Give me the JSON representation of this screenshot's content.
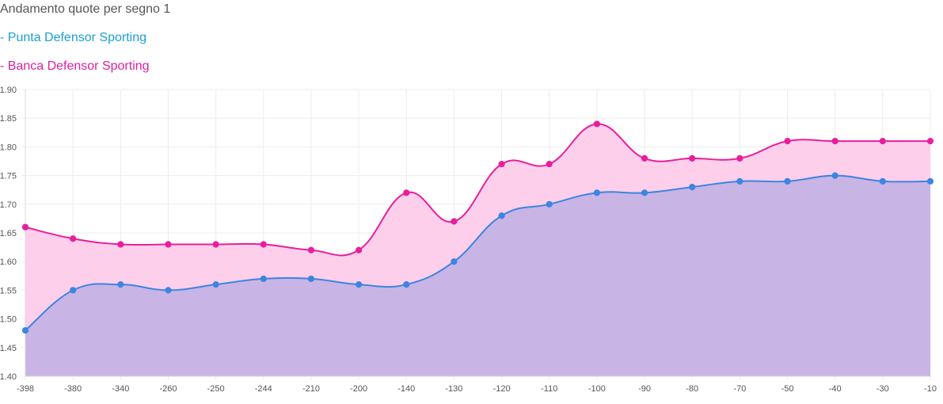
{
  "title": "Andamento quote per segno 1",
  "legend": {
    "punta": "- Punta Defensor Sporting",
    "banca": "- Banca Defensor Sporting"
  },
  "colors": {
    "punta_line": "#3d85e0",
    "punta_fill": "#c9b4e6",
    "banca_line": "#e91e9c",
    "banca_fill": "#fdcfeb",
    "grid": "#ececec",
    "axis_text": "#555555"
  },
  "chart_data": {
    "type": "area",
    "categories": [
      "-398",
      "-380",
      "-340",
      "-260",
      "-250",
      "-244",
      "-210",
      "-200",
      "-140",
      "-130",
      "-120",
      "-110",
      "-100",
      "-90",
      "-80",
      "-70",
      "-50",
      "-40",
      "-30",
      "-10"
    ],
    "series": [
      {
        "name": "- Punta Defensor Sporting",
        "values": [
          1.48,
          1.55,
          1.56,
          1.55,
          1.56,
          1.57,
          1.57,
          1.56,
          1.56,
          1.6,
          1.68,
          1.7,
          1.72,
          1.72,
          1.73,
          1.74,
          1.74,
          1.75,
          1.74,
          1.74
        ]
      },
      {
        "name": "- Banca Defensor Sporting",
        "values": [
          1.66,
          1.64,
          1.63,
          1.63,
          1.63,
          1.63,
          1.62,
          1.62,
          1.72,
          1.67,
          1.77,
          1.77,
          1.84,
          1.78,
          1.78,
          1.78,
          1.81,
          1.81,
          1.81,
          1.81
        ]
      }
    ],
    "ylim": [
      1.4,
      1.9
    ],
    "yticks": [
      "1.40",
      "1.45",
      "1.50",
      "1.55",
      "1.60",
      "1.65",
      "1.70",
      "1.75",
      "1.80",
      "1.85",
      "1.90"
    ],
    "grid": true,
    "legend_placement": "top-left"
  }
}
